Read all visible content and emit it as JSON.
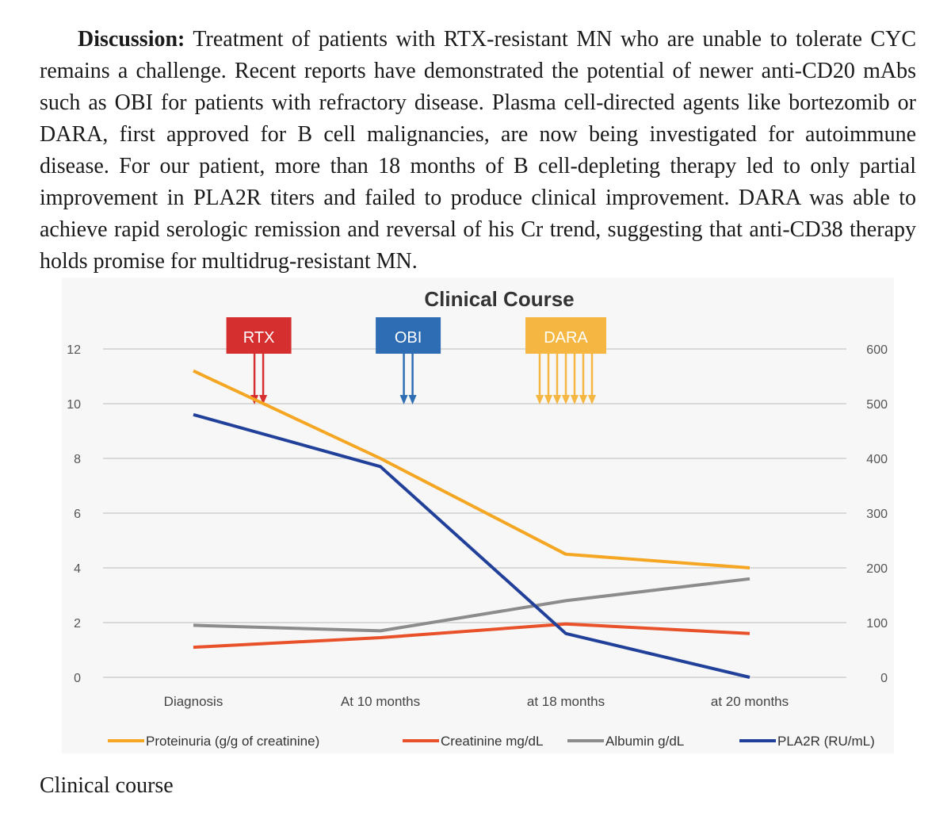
{
  "paragraph": {
    "heading": "Discussion:",
    "text": "Treatment of patients with RTX-resistant MN who are unable to tolerate CYC remains a challenge. Recent reports have demonstrated the potential of newer anti-CD20 mAbs such as OBI for patients with refractory disease. Plasma cell-directed agents like bortezomib or DARA, first approved for B cell malignancies, are now being investigated for autoimmune disease. For our patient, more than 18 months of B cell-depleting therapy led to only partial improvement in PLA2R titers and failed to produce clinical improvement. DARA was able to achieve rapid serologic remission and reversal of his Cr trend, suggesting that anti-CD38 therapy holds promise for multidrug-resistant MN."
  },
  "caption": "Clinical course",
  "chart_data": {
    "type": "line",
    "title": "Clinical Course",
    "categories": [
      "Diagnosis",
      "At 10 months",
      "at 18 months",
      "at 20 months"
    ],
    "y_left": {
      "ticks": [
        "0",
        "2",
        "4",
        "6",
        "8",
        "10",
        "12"
      ],
      "range": [
        0,
        12
      ]
    },
    "y_right": {
      "ticks": [
        "0",
        "100",
        "200",
        "300",
        "400",
        "500",
        "600"
      ],
      "range": [
        0,
        600
      ]
    },
    "series": [
      {
        "name": "Proteinuria (g/g of creatinine)",
        "axis": "left",
        "color": "#f5a623",
        "values": [
          11.2,
          8.0,
          4.5,
          4.0
        ]
      },
      {
        "name": "Creatinine mg/dL",
        "axis": "left",
        "color": "#e8512a",
        "values": [
          1.1,
          1.45,
          1.95,
          1.6
        ]
      },
      {
        "name": "Albumin g/dL",
        "axis": "left",
        "color": "#8c8c8c",
        "values": [
          1.9,
          1.7,
          2.8,
          3.6
        ]
      },
      {
        "name": "PLA2R (RU/mL)",
        "axis": "right",
        "color": "#21409a",
        "values": [
          480,
          385,
          80,
          0
        ]
      }
    ],
    "treatments": [
      {
        "label": "RTX",
        "color": "#d62f2f",
        "doses": 2,
        "position": 0.35
      },
      {
        "label": "OBI",
        "color": "#2e6db4",
        "doses": 2,
        "position": 1.15
      },
      {
        "label": "DARA",
        "color": "#f5b642",
        "doses": 7,
        "position": 2.0
      }
    ]
  }
}
